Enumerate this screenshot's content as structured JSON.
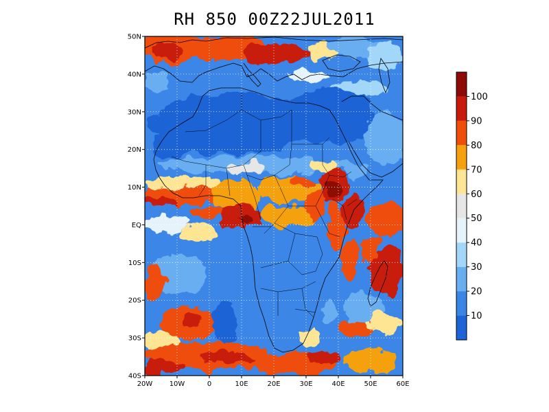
{
  "title": "RH 850 00Z22JUL2011",
  "map": {
    "lon_range": [
      -20,
      60
    ],
    "lat_range": [
      -40,
      50
    ],
    "lat_ticks": [
      {
        "value": 50,
        "label": "50N"
      },
      {
        "value": 40,
        "label": "40N"
      },
      {
        "value": 30,
        "label": "30N"
      },
      {
        "value": 20,
        "label": "20N"
      },
      {
        "value": 10,
        "label": "10N"
      },
      {
        "value": 0,
        "label": "EQ"
      },
      {
        "value": -10,
        "label": "10S"
      },
      {
        "value": -20,
        "label": "20S"
      },
      {
        "value": -30,
        "label": "30S"
      },
      {
        "value": -40,
        "label": "40S"
      }
    ],
    "lon_ticks": [
      {
        "value": -20,
        "label": "20W"
      },
      {
        "value": -10,
        "label": "10W"
      },
      {
        "value": 0,
        "label": "0"
      },
      {
        "value": 10,
        "label": "10E"
      },
      {
        "value": 20,
        "label": "20E"
      },
      {
        "value": 30,
        "label": "30E"
      },
      {
        "value": 40,
        "label": "40E"
      },
      {
        "value": 50,
        "label": "50E"
      },
      {
        "value": 60,
        "label": "60E"
      }
    ],
    "grid": "dotted"
  },
  "colorbar": {
    "colors": [
      "#1f64d6",
      "#3a86e6",
      "#6aaef2",
      "#a3d7fa",
      "#e6f3fa",
      "#e6e6e6",
      "#fde594",
      "#f5a10f",
      "#ee4e0a",
      "#c81a0a",
      "#8e0a06"
    ],
    "labels": [
      "10",
      "20",
      "30",
      "40",
      "50",
      "60",
      "70",
      "80",
      "90",
      "100"
    ]
  }
}
